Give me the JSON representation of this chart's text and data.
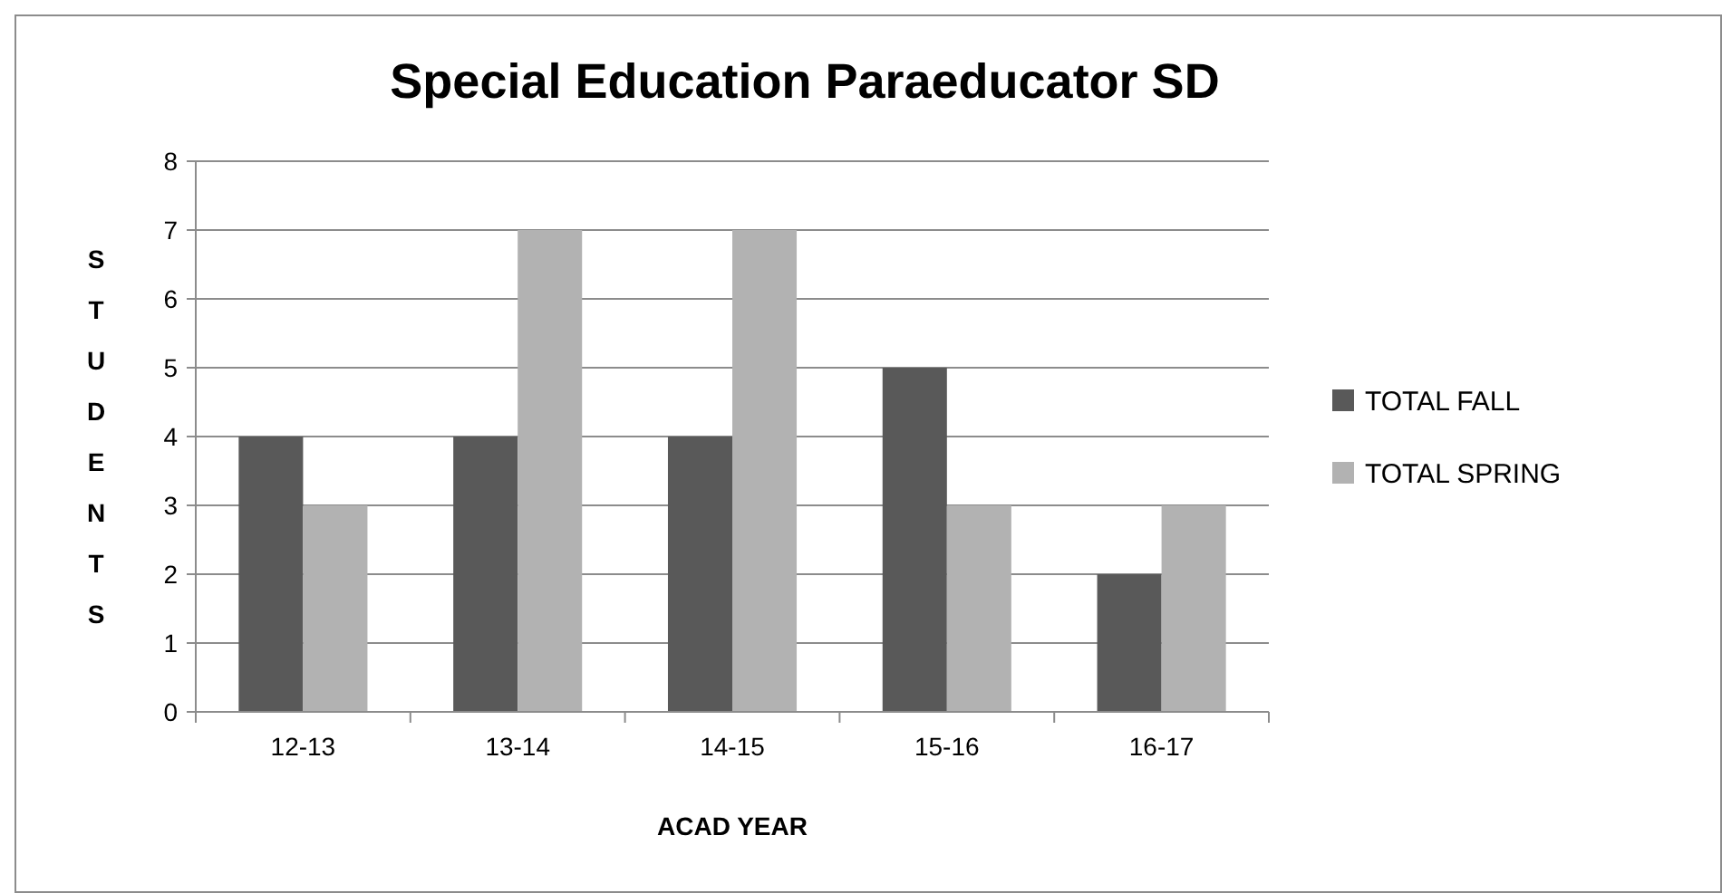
{
  "chart_data": {
    "type": "bar",
    "title": "Special Education Paraeducator SD",
    "xlabel": "ACAD YEAR",
    "ylabel": "STUDENTS",
    "categories": [
      "12-13",
      "13-14",
      "14-15",
      "15-16",
      "16-17"
    ],
    "series": [
      {
        "name": "TOTAL FALL",
        "color": "#595959",
        "values": [
          4,
          4,
          4,
          5,
          2
        ]
      },
      {
        "name": "TOTAL SPRING",
        "color": "#b2b2b2",
        "values": [
          3,
          7,
          7,
          3,
          3
        ]
      }
    ],
    "ylim": [
      0,
      8
    ],
    "yticks": [
      0,
      1,
      2,
      3,
      4,
      5,
      6,
      7,
      8
    ],
    "grid": "y",
    "legend": "right"
  }
}
